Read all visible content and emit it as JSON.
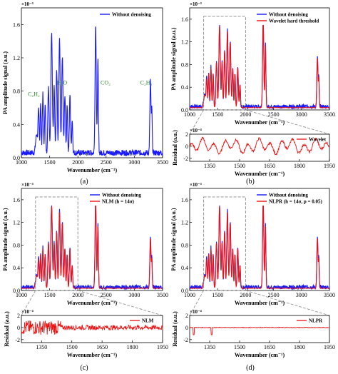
{
  "panel_labels": [
    "(a)",
    "(b)",
    "(c)",
    "(d)"
  ],
  "colors": {
    "noisy": "#1a1aff",
    "denoised": "#ee1111",
    "annotation": "#2e8b2e",
    "zoom_box": "#888888"
  },
  "chart_data": [
    {
      "id": "a",
      "type": "line",
      "xlabel": "Wavenumber (cm⁻¹)",
      "ylabel": "PA amplitude signal (a.u.)",
      "xlim": [
        1000,
        3500
      ],
      "ylim": [
        0,
        0.0018
      ],
      "x_ticks": [
        "1000",
        "1500",
        "2000",
        "2500",
        "3000",
        "3500"
      ],
      "y_ticks": [
        "0.0",
        "0.4",
        "0.8",
        "1.2",
        "1.6"
      ],
      "exponent": "×10⁻³",
      "legend": "top-right",
      "series": [
        {
          "name": "Without denoising",
          "color": "#1a1aff",
          "x": [],
          "y": []
        }
      ],
      "annotations": [
        {
          "text": "C₂H₂",
          "x": 1220,
          "y": 0.00074
        },
        {
          "text": "H₂O",
          "x": 1720,
          "y": 0.00088
        },
        {
          "text": "CO₂",
          "x": 2490,
          "y": 0.00088
        },
        {
          "text": "C₂H₂",
          "x": 3210,
          "y": 0.00088
        }
      ]
    },
    {
      "id": "b",
      "type": "line",
      "xlabel": "Wavenumber (cm⁻¹)",
      "ylabel": "PA amplitude signal (a.u.)",
      "xlim": [
        1000,
        3500
      ],
      "ylim": [
        0,
        0.0018
      ],
      "x_ticks": [
        "1000",
        "1500",
        "2000",
        "2500",
        "3000",
        "3500"
      ],
      "y_ticks": [
        "0.0",
        "0.4",
        "0.8",
        "1.2",
        "1.6"
      ],
      "exponent": "×10⁻³",
      "legend": "top-right",
      "zoom_box": [
        1250,
        2000,
        0,
        0.00165
      ],
      "series": [
        {
          "name": "Without denoising",
          "color": "#1a1aff"
        },
        {
          "name": "Wavelet hard threshold",
          "color": "#ee1111"
        }
      ],
      "residual": {
        "ylabel": "Residual (a.u.)",
        "xlabel": "Wavenumber (cm⁻¹)",
        "xlim": [
          1250,
          1950
        ],
        "ylim": [
          -0.00025,
          0.0002
        ],
        "x_ticks": [
          "1350",
          "1500",
          "1650",
          "1800",
          "1950"
        ],
        "y_ticks": [
          "-2",
          "0",
          "2"
        ],
        "exponent": "×10⁻⁴",
        "series_name": "Wavelet"
      }
    },
    {
      "id": "c",
      "type": "line",
      "xlabel": "Wavenumber (cm⁻¹)",
      "ylabel": "PA amplitude signal (a.u.)",
      "xlim": [
        1000,
        3500
      ],
      "ylim": [
        0,
        0.0018
      ],
      "x_ticks": [
        "1000",
        "1500",
        "2000",
        "2500",
        "3000",
        "3500"
      ],
      "y_ticks": [
        "0.0",
        "0.4",
        "0.8",
        "1.2",
        "1.6"
      ],
      "exponent": "×10⁻³",
      "legend": "top-right",
      "zoom_box": [
        1250,
        2000,
        0,
        0.00165
      ],
      "series": [
        {
          "name": "Without denoising",
          "color": "#1a1aff"
        },
        {
          "name": "NLM (h = 14σ)",
          "color": "#ee1111"
        }
      ],
      "residual": {
        "ylabel": "Residual (a.u.)",
        "xlabel": "Wavenumber (cm⁻¹)",
        "xlim": [
          1250,
          1950
        ],
        "ylim": [
          -0.00025,
          0.0002
        ],
        "x_ticks": [
          "1350",
          "1500",
          "1650",
          "1800",
          "1950"
        ],
        "y_ticks": [
          "-2",
          "0",
          "2"
        ],
        "exponent": "×10⁻⁴",
        "series_name": "NLM"
      }
    },
    {
      "id": "d",
      "type": "line",
      "xlabel": "Wavenumber (cm⁻¹)",
      "ylabel": "PA amplitude signal (a.u.)",
      "xlim": [
        1000,
        3500
      ],
      "ylim": [
        0,
        0.0018
      ],
      "x_ticks": [
        "1000",
        "1500",
        "2000",
        "2500",
        "3000",
        "3500"
      ],
      "y_ticks": [
        "0.0",
        "0.4",
        "0.8",
        "1.2",
        "1.6"
      ],
      "exponent": "×10⁻³",
      "legend": "top-right",
      "zoom_box": [
        1250,
        2000,
        0,
        0.00165
      ],
      "series": [
        {
          "name": "Without denoising",
          "color": "#1a1aff"
        },
        {
          "name": "NLPR (h = 14σ, p = 0.05)",
          "color": "#ee1111"
        }
      ],
      "residual": {
        "ylabel": "Residual (a.u.)",
        "xlabel": "Wavenumber (cm⁻¹)",
        "xlim": [
          1250,
          1950
        ],
        "ylim": [
          -0.00025,
          0.0002
        ],
        "x_ticks": [
          "1350",
          "1500",
          "1650",
          "1800",
          "1950"
        ],
        "y_ticks": [
          "-2",
          "0",
          "2"
        ],
        "exponent": "×10⁻⁴",
        "series_name": "NLPR"
      }
    }
  ],
  "spectrum_peaks": [
    {
      "x": 1270,
      "a": 0.00022,
      "w": 25
    },
    {
      "x": 1305,
      "a": 0.00048,
      "w": 14
    },
    {
      "x": 1340,
      "a": 0.0006,
      "w": 12
    },
    {
      "x": 1380,
      "a": 0.0007,
      "w": 14
    },
    {
      "x": 1420,
      "a": 0.0006,
      "w": 12
    },
    {
      "x": 1480,
      "a": 0.0008,
      "w": 16
    },
    {
      "x": 1535,
      "a": 0.00145,
      "w": 18
    },
    {
      "x": 1580,
      "a": 0.0008,
      "w": 14
    },
    {
      "x": 1625,
      "a": 0.001,
      "w": 15
    },
    {
      "x": 1675,
      "a": 0.00135,
      "w": 16
    },
    {
      "x": 1725,
      "a": 0.00115,
      "w": 16
    },
    {
      "x": 1770,
      "a": 0.0007,
      "w": 14
    },
    {
      "x": 1810,
      "a": 0.0006,
      "w": 12
    },
    {
      "x": 1860,
      "a": 0.0007,
      "w": 14
    },
    {
      "x": 1900,
      "a": 0.0004,
      "w": 12
    },
    {
      "x": 2315,
      "a": 0.00155,
      "w": 15
    },
    {
      "x": 2355,
      "a": 0.0011,
      "w": 12
    },
    {
      "x": 3285,
      "a": 0.00088,
      "w": 14
    },
    {
      "x": 3310,
      "a": 0.0005,
      "w": 10
    }
  ]
}
